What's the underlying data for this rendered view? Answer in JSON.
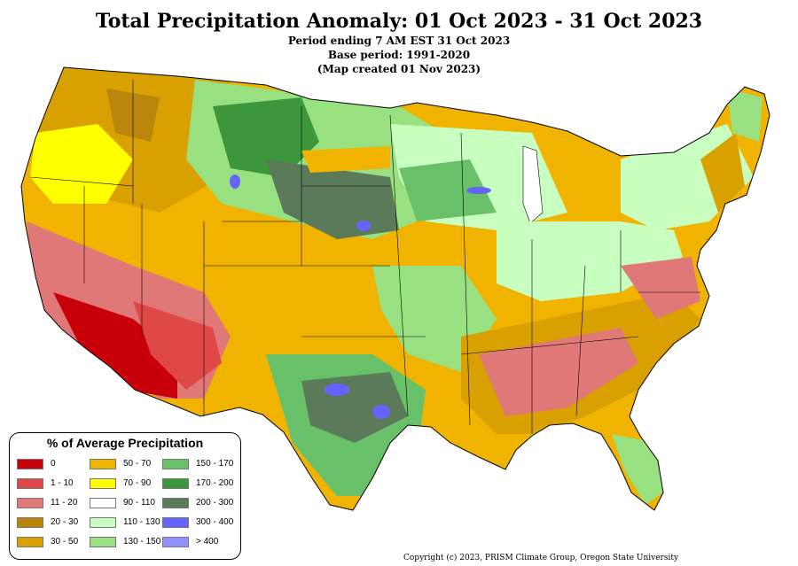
{
  "header": {
    "title": "Total Precipitation Anomaly: 01 Oct 2023 - 31 Oct 2023",
    "line1": "Period ending 7 AM EST 31 Oct 2023",
    "line2": "Base period: 1991-2020",
    "line3": "(Map created 01 Nov 2023)"
  },
  "legend": {
    "title": "% of Average Precipitation",
    "items": [
      {
        "label": "0",
        "color": "#c8000a"
      },
      {
        "label": "1 - 10",
        "color": "#e04848"
      },
      {
        "label": "11 - 20",
        "color": "#e07878"
      },
      {
        "label": "20 - 30",
        "color": "#b8860b"
      },
      {
        "label": "30 - 50",
        "color": "#d8a000"
      },
      {
        "label": "50 - 70",
        "color": "#f0b400"
      },
      {
        "label": "70 - 90",
        "color": "#ffff00"
      },
      {
        "label": "90 - 110",
        "color": "#ffffff"
      },
      {
        "label": "110 - 130",
        "color": "#c8ffc0"
      },
      {
        "label": "130 - 150",
        "color": "#98e080"
      },
      {
        "label": "150 - 170",
        "color": "#68c068"
      },
      {
        "label": "170 - 200",
        "color": "#3c963c"
      },
      {
        "label": "200 - 300",
        "color": "#5a7a5a"
      },
      {
        "label": "300 - 400",
        "color": "#6464ff"
      },
      {
        "label": "> 400",
        "color": "#9090ff"
      }
    ]
  },
  "copyright": "Copyright (c) 2023, PRISM Climate Group, Oregon State University"
}
